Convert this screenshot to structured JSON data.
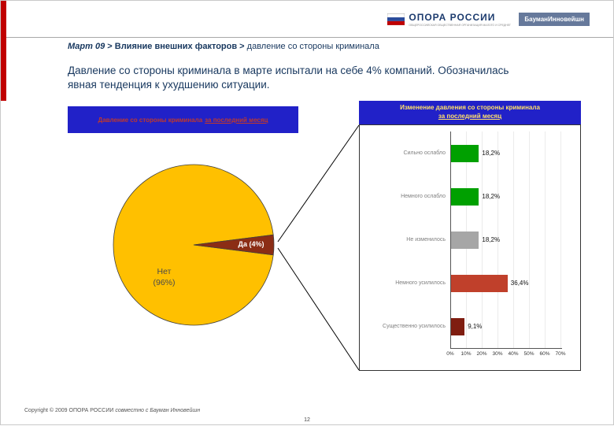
{
  "header": {
    "breadcrumb_part1": "Март 09",
    "breadcrumb_part2": " > Влияние внешних факторов > ",
    "breadcrumb_part3": "давление со стороны криминала",
    "body_text": "Давление со стороны криминала в марте испытали на себе 4% компаний. Обозначилась явная тенденция к ухудшению ситуации."
  },
  "logos": {
    "opora": "ОПОРА РОССИИ",
    "opora_tagline": "ОБЩЕРОССИЙСКАЯ ОБЩЕСТВЕННАЯ ОРГАНИЗАЦИЯ МАЛОГО И СРЕДНЕГО ПРЕДПРИНИМАТЕЛЬСТВА",
    "bauman": "БауманИнновейшн"
  },
  "chart_data": [
    {
      "type": "pie",
      "title": "Давление со стороны криминала за последний месяц",
      "title_prefix": "Давление со стороны криминала",
      "title_underlined": "за последний месяц",
      "labels": [
        "Да",
        "Нет"
      ],
      "values": [
        4,
        96
      ],
      "colors": [
        "#8B2D15",
        "#FFC000"
      ],
      "slice_label_yes": "Да (4%)",
      "slice_label_no_line1": "Нет",
      "slice_label_no_line2": "(96%)",
      "legend": "none"
    },
    {
      "type": "bar",
      "orientation": "horizontal",
      "title": "Изменение давления со стороны криминала за последний месяц",
      "title_prefix": "Изменение давления со стороны криминала",
      "title_underlined": "за последний месяц",
      "categories": [
        "Сильно ослабло",
        "Немного ослабло",
        "Не изменилось",
        "Немного усилилось",
        "Существенно усилилось"
      ],
      "values": [
        18.2,
        18.2,
        18.2,
        36.4,
        9.1
      ],
      "value_labels": [
        "18,2%",
        "18,2%",
        "18,2%",
        "36,4%",
        "9,1%"
      ],
      "colors": [
        "#00A000",
        "#00A000",
        "#A6A6A6",
        "#C0402B",
        "#7F1D10"
      ],
      "x_ticks": [
        "0%",
        "10%",
        "20%",
        "30%",
        "40%",
        "50%",
        "60%",
        "70%"
      ],
      "xlim": [
        0,
        70
      ],
      "grid": "off",
      "xlabel": "",
      "ylabel": ""
    }
  ],
  "footer": {
    "copyright": "Copyright © 2009 ОПОРА РОССИИ",
    "partner": "совместно с Бауман Инновейшн",
    "page_number": "12"
  },
  "colors": {
    "accent_red": "#C00000",
    "header_blue": "#2121C8",
    "pie_header_text": "#C0392B",
    "bar_header_text": "#FFE06B"
  }
}
